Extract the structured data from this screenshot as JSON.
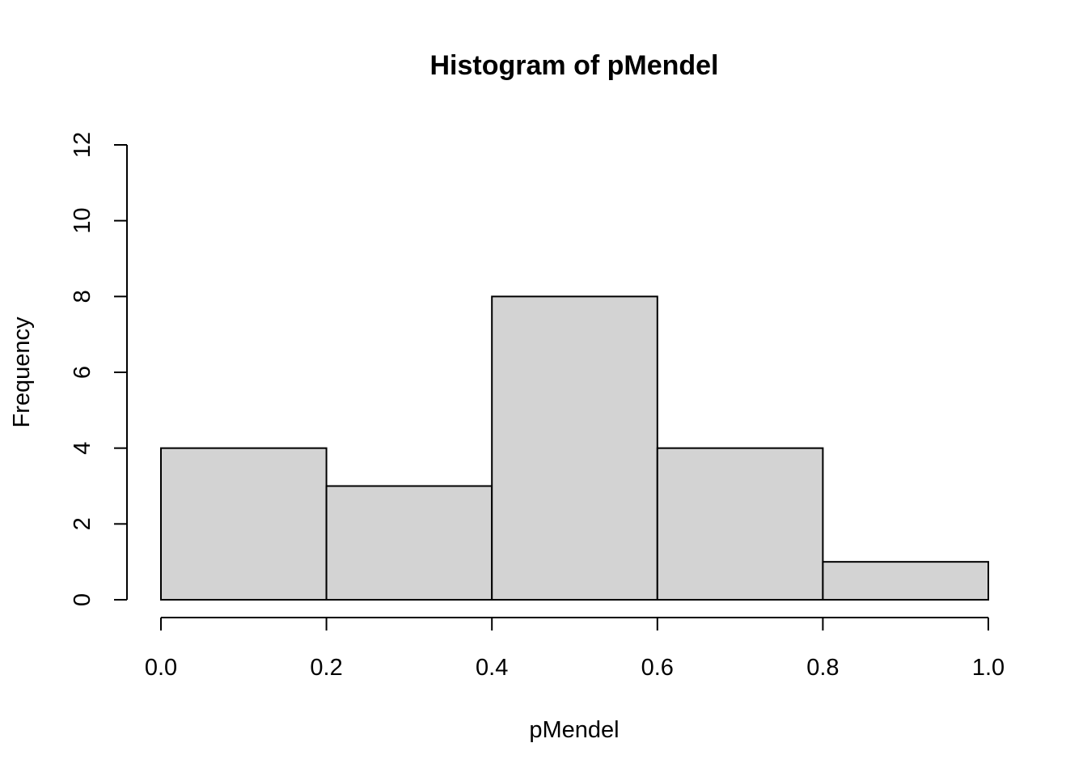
{
  "chart_data": {
    "type": "bar",
    "title": "Histogram of pMendel",
    "xlabel": "pMendel",
    "ylabel": "Frequency",
    "bins": [
      {
        "from": 0.0,
        "to": 0.2,
        "count": 4
      },
      {
        "from": 0.2,
        "to": 0.4,
        "count": 3
      },
      {
        "from": 0.4,
        "to": 0.6,
        "count": 8
      },
      {
        "from": 0.6,
        "to": 0.8,
        "count": 4
      },
      {
        "from": 0.8,
        "to": 1.0,
        "count": 1
      }
    ],
    "xlim": [
      0.0,
      1.0
    ],
    "ylim": [
      0,
      12
    ],
    "x_ticks": [
      0.0,
      0.2,
      0.4,
      0.6,
      0.8,
      1.0
    ],
    "x_tick_labels": [
      "0.0",
      "0.2",
      "0.4",
      "0.6",
      "0.8",
      "1.0"
    ],
    "y_ticks": [
      0,
      2,
      4,
      6,
      8,
      10,
      12
    ],
    "y_tick_labels": [
      "0",
      "2",
      "4",
      "6",
      "8",
      "10",
      "12"
    ],
    "grid": false,
    "legend": "none",
    "colors": {
      "bar_fill": "#d3d3d3",
      "bar_stroke": "#000000",
      "background": "#ffffff"
    }
  }
}
